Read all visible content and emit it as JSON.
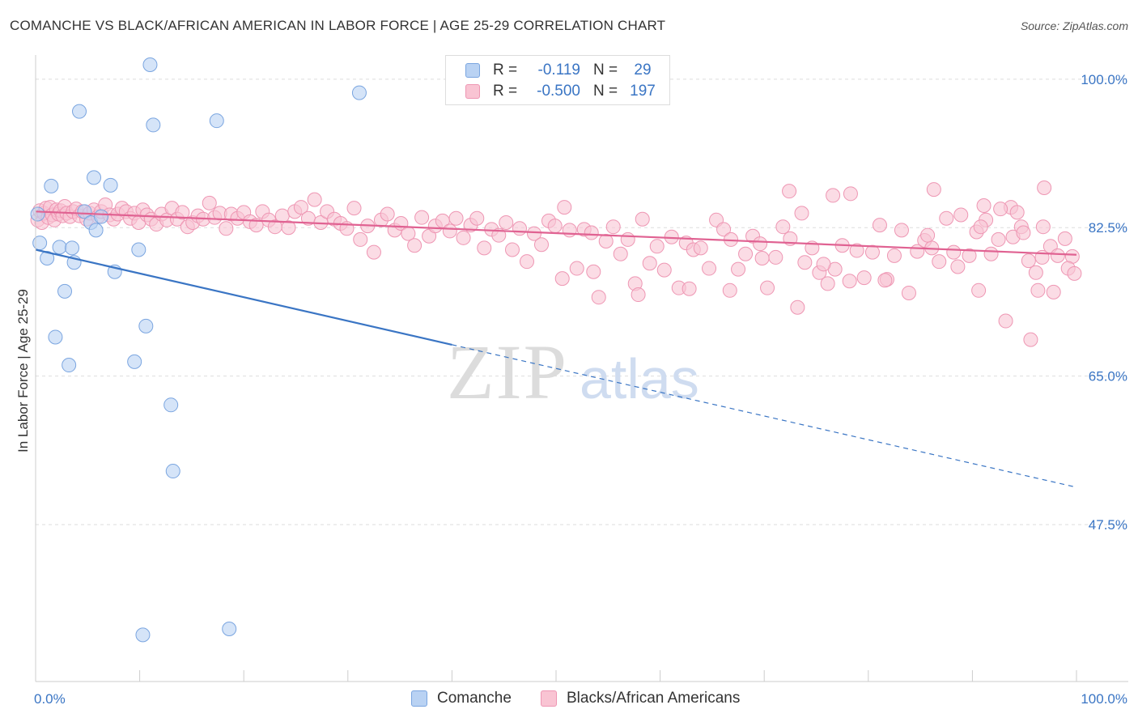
{
  "title": "COMANCHE VS BLACK/AFRICAN AMERICAN IN LABOR FORCE | AGE 25-29 CORRELATION CHART",
  "source": "Source: ZipAtlas.com",
  "watermark": {
    "zip": "ZIP",
    "atlas": "atlas"
  },
  "stats": [
    {
      "r_label": "R =",
      "r_value": "-0.119",
      "n_label": "N =",
      "n_value": "29",
      "fill": "#b9d2f3",
      "stroke": "#7aa5e0"
    },
    {
      "r_label": "R =",
      "r_value": "-0.500",
      "n_label": "N =",
      "n_value": "197",
      "fill": "#f9c4d3",
      "stroke": "#ee96b3"
    }
  ],
  "colors": {
    "blue_line": "#3a75c4",
    "pink_line": "#e06292",
    "tick_label": "#3a75c4",
    "grid": "#dddddd"
  },
  "chart_data": {
    "type": "scatter",
    "title": "COMANCHE VS BLACK/AFRICAN AMERICAN IN LABOR FORCE | AGE 25-29 CORRELATION CHART",
    "xlabel": "",
    "ylabel": "In Labor Force | Age 25-29",
    "xlim": [
      0,
      100
    ],
    "ylim": [
      29,
      101.7
    ],
    "grid": true,
    "x_tick_labels": [
      {
        "value": 0,
        "label": "0.0%"
      },
      {
        "value": 100,
        "label": "100.0%"
      }
    ],
    "y_tick_labels": [
      {
        "value": 100,
        "label": "100.0%"
      },
      {
        "value": 82.5,
        "label": "82.5%"
      },
      {
        "value": 65,
        "label": "65.0%"
      },
      {
        "value": 47.5,
        "label": "47.5%"
      }
    ],
    "legend_position": "bottom",
    "series": [
      {
        "name": "Comanche",
        "color": "#b9d2f3",
        "stroke": "#7aa5e0",
        "points": [
          [
            0.2,
            84.1
          ],
          [
            0.4,
            80.7
          ],
          [
            1.1,
            78.9
          ],
          [
            1.5,
            87.4
          ],
          [
            1.9,
            69.6
          ],
          [
            2.3,
            80.2
          ],
          [
            2.8,
            75.0
          ],
          [
            3.2,
            66.3
          ],
          [
            3.5,
            80.1
          ],
          [
            3.7,
            78.4
          ],
          [
            4.2,
            96.2
          ],
          [
            4.7,
            84.4
          ],
          [
            5.3,
            83.1
          ],
          [
            5.6,
            88.4
          ],
          [
            5.8,
            82.2
          ],
          [
            6.3,
            83.8
          ],
          [
            7.2,
            87.5
          ],
          [
            7.6,
            77.3
          ],
          [
            9.5,
            66.7
          ],
          [
            9.9,
            79.9
          ],
          [
            10.3,
            34.5
          ],
          [
            10.6,
            70.9
          ],
          [
            11.0,
            101.7
          ],
          [
            11.3,
            94.6
          ],
          [
            13.0,
            61.6
          ],
          [
            13.2,
            53.8
          ],
          [
            17.4,
            95.1
          ],
          [
            18.6,
            35.2
          ],
          [
            31.1,
            98.4
          ]
        ],
        "trend": {
          "x": [
            0,
            100
          ],
          "y": [
            79.9,
            51.9
          ],
          "solid_until_x": 40
        }
      },
      {
        "name": "Blacks/African Americans",
        "color": "#f9c4d3",
        "stroke": "#ee96b3",
        "points": [
          [
            0.2,
            83.4
          ],
          [
            0.4,
            84.5
          ],
          [
            0.6,
            83.1
          ],
          [
            0.8,
            84.2
          ],
          [
            1.0,
            84.8
          ],
          [
            1.2,
            83.7
          ],
          [
            1.4,
            84.9
          ],
          [
            1.6,
            84.0
          ],
          [
            1.8,
            83.4
          ],
          [
            2.0,
            84.6
          ],
          [
            2.2,
            84.1
          ],
          [
            2.4,
            84.5
          ],
          [
            2.6,
            83.9
          ],
          [
            2.8,
            85.0
          ],
          [
            3.0,
            84.2
          ],
          [
            3.3,
            83.8
          ],
          [
            3.6,
            84.4
          ],
          [
            3.9,
            84.7
          ],
          [
            4.2,
            83.9
          ],
          [
            4.5,
            84.4
          ],
          [
            4.9,
            83.5
          ],
          [
            5.2,
            84.2
          ],
          [
            5.6,
            84.6
          ],
          [
            6.0,
            83.8
          ],
          [
            6.3,
            84.4
          ],
          [
            6.7,
            85.2
          ],
          [
            7.1,
            84.0
          ],
          [
            7.5,
            83.5
          ],
          [
            7.9,
            84.1
          ],
          [
            8.3,
            84.8
          ],
          [
            8.7,
            84.4
          ],
          [
            9.1,
            83.6
          ],
          [
            9.5,
            84.2
          ],
          [
            9.9,
            83.1
          ],
          [
            10.3,
            84.6
          ],
          [
            10.7,
            84.0
          ],
          [
            11.1,
            83.5
          ],
          [
            11.6,
            82.9
          ],
          [
            12.1,
            84.1
          ],
          [
            12.6,
            83.4
          ],
          [
            13.1,
            84.8
          ],
          [
            13.6,
            83.5
          ],
          [
            14.1,
            84.3
          ],
          [
            14.6,
            82.6
          ],
          [
            15.1,
            83.1
          ],
          [
            15.6,
            83.9
          ],
          [
            16.1,
            83.5
          ],
          [
            16.7,
            85.4
          ],
          [
            17.2,
            83.7
          ],
          [
            17.7,
            84.2
          ],
          [
            18.3,
            82.4
          ],
          [
            18.8,
            84.1
          ],
          [
            19.4,
            83.6
          ],
          [
            20.0,
            84.3
          ],
          [
            20.6,
            83.2
          ],
          [
            21.2,
            82.8
          ],
          [
            21.8,
            84.4
          ],
          [
            22.4,
            83.4
          ],
          [
            23.0,
            82.6
          ],
          [
            23.7,
            83.9
          ],
          [
            24.3,
            82.5
          ],
          [
            24.9,
            84.4
          ],
          [
            25.5,
            84.9
          ],
          [
            26.2,
            83.6
          ],
          [
            26.8,
            85.8
          ],
          [
            27.4,
            83.1
          ],
          [
            28.0,
            84.4
          ],
          [
            28.7,
            83.5
          ],
          [
            29.3,
            83.0
          ],
          [
            29.9,
            82.4
          ],
          [
            30.6,
            84.8
          ],
          [
            31.2,
            81.1
          ],
          [
            31.9,
            82.7
          ],
          [
            32.5,
            79.6
          ],
          [
            33.2,
            83.4
          ],
          [
            33.8,
            84.1
          ],
          [
            34.5,
            82.2
          ],
          [
            35.1,
            83.0
          ],
          [
            35.8,
            81.8
          ],
          [
            36.4,
            80.4
          ],
          [
            37.1,
            83.7
          ],
          [
            37.8,
            81.5
          ],
          [
            38.4,
            82.7
          ],
          [
            39.1,
            83.3
          ],
          [
            39.8,
            82.1
          ],
          [
            40.4,
            83.6
          ],
          [
            41.1,
            81.3
          ],
          [
            41.8,
            82.8
          ],
          [
            42.4,
            83.6
          ],
          [
            43.1,
            80.1
          ],
          [
            43.8,
            82.3
          ],
          [
            44.5,
            81.6
          ],
          [
            45.2,
            83.1
          ],
          [
            45.8,
            79.9
          ],
          [
            46.5,
            82.4
          ],
          [
            47.2,
            78.5
          ],
          [
            47.9,
            81.8
          ],
          [
            48.6,
            80.5
          ],
          [
            49.3,
            83.3
          ],
          [
            49.9,
            82.7
          ],
          [
            50.6,
            76.5
          ],
          [
            51.3,
            82.2
          ],
          [
            52.0,
            77.7
          ],
          [
            52.7,
            82.3
          ],
          [
            53.4,
            81.9
          ],
          [
            54.1,
            74.3
          ],
          [
            54.8,
            80.9
          ],
          [
            55.5,
            82.6
          ],
          [
            56.2,
            79.4
          ],
          [
            56.9,
            81.1
          ],
          [
            57.6,
            75.9
          ],
          [
            58.3,
            83.5
          ],
          [
            59.0,
            78.3
          ],
          [
            59.7,
            80.3
          ],
          [
            60.4,
            77.5
          ],
          [
            61.1,
            81.4
          ],
          [
            61.8,
            75.4
          ],
          [
            62.5,
            80.7
          ],
          [
            63.2,
            79.9
          ],
          [
            63.9,
            80.1
          ],
          [
            64.7,
            77.7
          ],
          [
            65.4,
            83.4
          ],
          [
            66.1,
            82.3
          ],
          [
            66.8,
            81.1
          ],
          [
            67.5,
            77.6
          ],
          [
            68.2,
            79.4
          ],
          [
            68.9,
            81.5
          ],
          [
            69.6,
            80.6
          ],
          [
            70.3,
            75.4
          ],
          [
            71.1,
            79.0
          ],
          [
            71.8,
            82.6
          ],
          [
            72.5,
            81.2
          ],
          [
            73.2,
            73.1
          ],
          [
            73.9,
            78.4
          ],
          [
            74.6,
            80.1
          ],
          [
            75.3,
            77.2
          ],
          [
            76.1,
            75.9
          ],
          [
            76.8,
            77.6
          ],
          [
            77.5,
            80.4
          ],
          [
            78.2,
            76.2
          ],
          [
            78.9,
            79.8
          ],
          [
            79.6,
            76.6
          ],
          [
            80.4,
            79.6
          ],
          [
            81.1,
            82.8
          ],
          [
            81.8,
            76.4
          ],
          [
            82.5,
            79.2
          ],
          [
            83.2,
            82.2
          ],
          [
            83.9,
            74.8
          ],
          [
            84.7,
            79.7
          ],
          [
            85.4,
            81.0
          ],
          [
            86.1,
            80.1
          ],
          [
            86.8,
            78.5
          ],
          [
            87.5,
            83.6
          ],
          [
            88.2,
            79.6
          ],
          [
            88.9,
            84.0
          ],
          [
            89.7,
            79.2
          ],
          [
            90.4,
            82.0
          ],
          [
            91.1,
            85.1
          ],
          [
            91.8,
            79.4
          ],
          [
            92.5,
            81.1
          ],
          [
            93.2,
            71.5
          ],
          [
            93.9,
            81.4
          ],
          [
            94.7,
            82.6
          ],
          [
            95.4,
            78.6
          ],
          [
            96.1,
            77.2
          ],
          [
            96.8,
            82.6
          ],
          [
            97.5,
            80.3
          ],
          [
            98.2,
            79.2
          ],
          [
            98.9,
            81.2
          ],
          [
            99.6,
            79.1
          ],
          [
            72.4,
            86.8
          ],
          [
            76.6,
            86.3
          ],
          [
            78.3,
            86.5
          ],
          [
            86.3,
            87.0
          ],
          [
            90.6,
            75.1
          ],
          [
            91.3,
            83.4
          ],
          [
            93.7,
            84.9
          ],
          [
            94.3,
            84.3
          ],
          [
            95.6,
            69.3
          ],
          [
            96.3,
            75.1
          ],
          [
            96.9,
            87.2
          ],
          [
            97.8,
            74.9
          ],
          [
            99.2,
            77.7
          ],
          [
            99.8,
            77.1
          ],
          [
            50.8,
            84.9
          ],
          [
            53.6,
            77.3
          ],
          [
            57.9,
            74.6
          ],
          [
            62.8,
            75.3
          ],
          [
            66.7,
            75.1
          ],
          [
            69.8,
            78.9
          ],
          [
            73.6,
            84.2
          ],
          [
            75.7,
            78.2
          ],
          [
            81.6,
            76.3
          ],
          [
            85.7,
            81.6
          ],
          [
            88.6,
            77.9
          ],
          [
            90.8,
            82.6
          ],
          [
            92.7,
            84.7
          ],
          [
            94.9,
            81.9
          ],
          [
            96.7,
            79.0
          ]
        ],
        "trend": {
          "x": [
            0,
            100
          ],
          "y": [
            84.4,
            79.3
          ],
          "solid_until_x": 100
        }
      }
    ]
  }
}
